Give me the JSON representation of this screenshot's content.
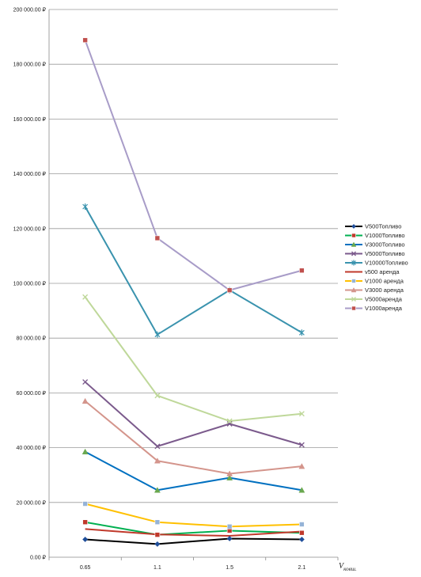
{
  "chart_data": {
    "type": "line",
    "x": [
      "0.65",
      "1.1",
      "1.5",
      "2.1"
    ],
    "ylim": [
      0,
      200000
    ],
    "y_ticks": [
      "0.00 ₽",
      "20 000.00 ₽",
      "40 000.00 ₽",
      "60 000.00 ₽",
      "80 000.00 ₽",
      "100 000.00 ₽",
      "120 000.00 ₽",
      "140 000.00 ₽",
      "160 000.00 ₽",
      "180 000.00 ₽",
      "200 000.00 ₽"
    ],
    "xlabel": "V",
    "xlabel_sub": "ковш.",
    "grid": true,
    "legend_position": "right",
    "series": [
      {
        "name": "V500Топливо",
        "values": [
          6500,
          4800,
          6800,
          6500
        ],
        "color": "#000000",
        "marker": "diamond"
      },
      {
        "name": "V1000Топливо",
        "values": [
          12800,
          8200,
          9700,
          8900
        ],
        "color": "#00B050",
        "marker": "square"
      },
      {
        "name": "V3000Топливо",
        "values": [
          38500,
          24500,
          29000,
          24500
        ],
        "color": "#0070C0",
        "marker": "triangle"
      },
      {
        "name": "V5000Топливо",
        "values": [
          64000,
          40500,
          48700,
          41000
        ],
        "color": "#7B5A8C",
        "marker": "x"
      },
      {
        "name": "V10000Топливо",
        "values": [
          128000,
          81300,
          97500,
          82000
        ],
        "color": "#3A93AE",
        "marker": "star"
      },
      {
        "name": "v500 аренда",
        "values": [
          10300,
          8300,
          7800,
          9400
        ],
        "color": "#C0392B",
        "marker": "none"
      },
      {
        "name": "V1000 аренда",
        "values": [
          19500,
          12800,
          11200,
          12000
        ],
        "color": "#FFC000",
        "marker": "square"
      },
      {
        "name": "V3000 аренда",
        "values": [
          57000,
          35200,
          30500,
          33200
        ],
        "color": "#D4958C",
        "marker": "triangle"
      },
      {
        "name": "V5000аренда",
        "values": [
          95000,
          59000,
          49700,
          52400
        ],
        "color": "#BFD89A",
        "marker": "x"
      },
      {
        "name": "V1000аренда",
        "values": [
          188800,
          116500,
          97500,
          104700
        ],
        "color": "#A89CC8",
        "marker": "square"
      }
    ],
    "legend_marker_colors": {
      "V500Топливо": "#1F4E9A",
      "V1000Топливо": "#C0392B",
      "V3000Топливо": "#6AA84F",
      "V5000Топливо": "#7B5A8C",
      "V10000Топливо": "#3A93AE",
      "v500 аренда": "#F39C12",
      "V1000 аренда": "#95B3D7",
      "V3000 аренда": "#D4958C",
      "V5000аренда": "#BFD89A",
      "V1000аренда": "#C0504D"
    }
  }
}
